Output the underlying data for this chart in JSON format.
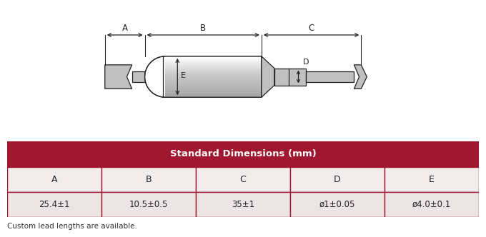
{
  "title": "Standard Dimensions (mm)",
  "col_headers": [
    "A",
    "B",
    "C",
    "D",
    "E"
  ],
  "values": [
    "25.4±1",
    "10.5±0.5",
    "35±1",
    "ø1±0.05",
    "ø4.0±0.1"
  ],
  "header_bg": "#a01830",
  "header_text_color": "#ffffff",
  "row1_bg": "#f2ecec",
  "row2_bg": "#ede5e5",
  "table_border_color": "#a01830",
  "footer_text": "Custom lead lengths are available.",
  "bg_color": "#ffffff",
  "line_color": "#222222",
  "fuse_body_color": "#c8c8c8",
  "fuse_highlight_color": "#f0f0f0",
  "lead_color": "#c0c0c0"
}
